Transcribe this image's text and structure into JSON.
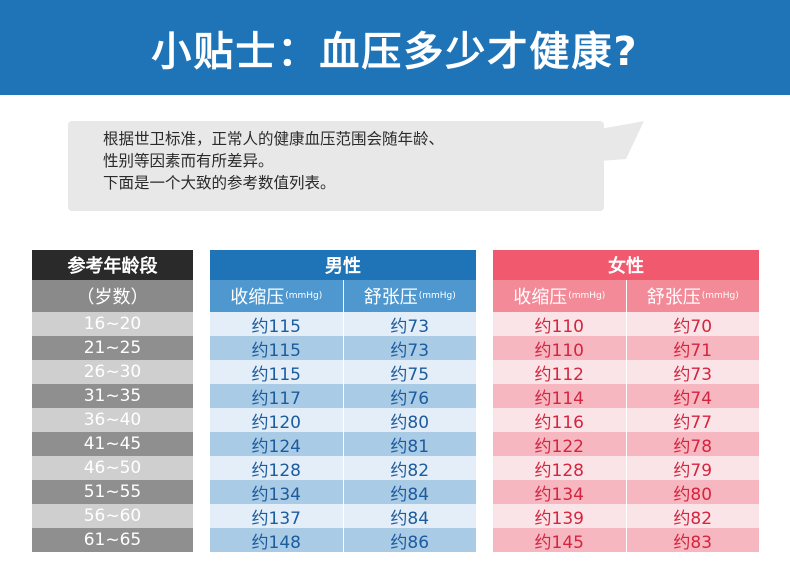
{
  "banner": {
    "title": "小贴士：血压多少才健康?"
  },
  "intro": {
    "line1": "根据世卫标准，正常人的健康血压范围会随年龄、",
    "line2": "性别等因素而有所差异。",
    "line3": "下面是一个大致的参考数值列表。"
  },
  "colors": {
    "banner": "#1f74b8",
    "male": "#1f74b8",
    "female": "#f0596e"
  },
  "age_table": {
    "header": "参考年龄段",
    "subheader": "（岁数）",
    "rows": [
      "16~20",
      "21~25",
      "26~30",
      "31~35",
      "36~40",
      "41~45",
      "46~50",
      "51~55",
      "56~60",
      "61~65"
    ]
  },
  "male_table": {
    "header": "男性",
    "systolic_label": "收缩压",
    "diastolic_label": "舒张压",
    "unit": "(mmHg)",
    "rows": [
      [
        "约115",
        "约73"
      ],
      [
        "约115",
        "约73"
      ],
      [
        "约115",
        "约75"
      ],
      [
        "约117",
        "约76"
      ],
      [
        "约120",
        "约80"
      ],
      [
        "约124",
        "约81"
      ],
      [
        "约128",
        "约82"
      ],
      [
        "约134",
        "约84"
      ],
      [
        "约137",
        "约84"
      ],
      [
        "约148",
        "约86"
      ]
    ]
  },
  "female_table": {
    "header": "女性",
    "systolic_label": "收缩压",
    "diastolic_label": "舒张压",
    "unit": "(mmHg)",
    "rows": [
      [
        "约110",
        "约70"
      ],
      [
        "约110",
        "约71"
      ],
      [
        "约112",
        "约73"
      ],
      [
        "约114",
        "约74"
      ],
      [
        "约116",
        "约77"
      ],
      [
        "约122",
        "约78"
      ],
      [
        "约128",
        "约79"
      ],
      [
        "约134",
        "约80"
      ],
      [
        "约139",
        "约82"
      ],
      [
        "约145",
        "约83"
      ]
    ]
  }
}
